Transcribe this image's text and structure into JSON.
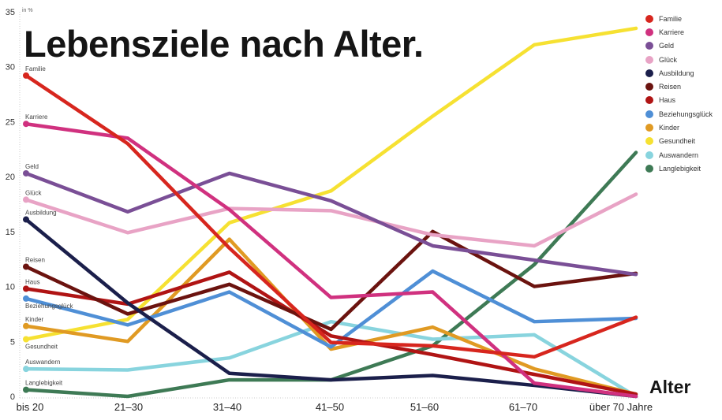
{
  "chart_data": {
    "type": "line",
    "title": "Lebensziele nach Alter.",
    "ylabel": "in %",
    "xlabel": "Alter",
    "ylim": [
      0,
      35
    ],
    "yticks": [
      0,
      5,
      10,
      15,
      20,
      25,
      30,
      35
    ],
    "categories": [
      "bis 20",
      "21–30",
      "31–40",
      "41–50",
      "51–60",
      "61–70",
      "über 70 Jahre"
    ],
    "grid": false,
    "legend": "top-right",
    "series": [
      {
        "name": "Familie",
        "color": "#d7261e",
        "values": [
          29.2,
          23.0,
          13.5,
          4.9,
          4.6,
          3.6,
          7.2
        ]
      },
      {
        "name": "Karriere",
        "color": "#d0317f",
        "values": [
          24.8,
          23.5,
          17.0,
          9.0,
          9.5,
          1.2,
          0
        ]
      },
      {
        "name": "Geld",
        "color": "#7a4f96",
        "values": [
          20.3,
          16.8,
          20.3,
          17.8,
          13.7,
          12.4,
          11.1
        ]
      },
      {
        "name": "Glück",
        "color": "#e8a3c5",
        "values": [
          17.9,
          14.9,
          17.1,
          16.9,
          14.7,
          13.7,
          18.4
        ]
      },
      {
        "name": "Ausbildung",
        "color": "#1b1f4b",
        "values": [
          16.1,
          8.5,
          2.1,
          1.5,
          1.9,
          1.0,
          0
        ]
      },
      {
        "name": "Reisen",
        "color": "#6b130f",
        "values": [
          11.8,
          7.5,
          10.2,
          6.1,
          15.0,
          10.0,
          11.2
        ]
      },
      {
        "name": "Haus",
        "color": "#b01414",
        "values": [
          9.8,
          8.4,
          11.3,
          5.5,
          3.8,
          2.0,
          0.2
        ]
      },
      {
        "name": "Beziehungsglück",
        "color": "#4f8fd6",
        "values": [
          8.9,
          6.5,
          9.5,
          4.5,
          11.4,
          6.8,
          7.1
        ]
      },
      {
        "name": "Kinder",
        "color": "#e09a23",
        "values": [
          6.4,
          5.0,
          14.3,
          4.3,
          6.3,
          2.5,
          0.2
        ]
      },
      {
        "name": "Gesundheit",
        "color": "#f6e132",
        "values": [
          5.2,
          7.0,
          15.8,
          18.7,
          25.5,
          32.0,
          33.5
        ]
      },
      {
        "name": "Auswandern",
        "color": "#88d4de",
        "values": [
          2.5,
          2.4,
          3.5,
          6.8,
          5.2,
          5.6,
          0
        ]
      },
      {
        "name": "Langlebigkeit",
        "color": "#3e7a55",
        "values": [
          0.6,
          0.0,
          1.5,
          1.5,
          4.6,
          12.0,
          22.2
        ]
      }
    ]
  }
}
